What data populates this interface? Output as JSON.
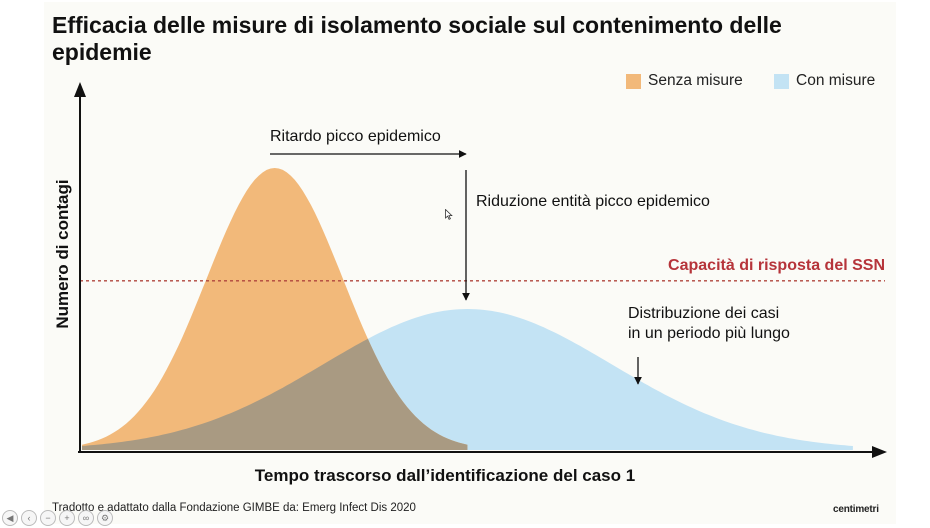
{
  "title": "Efficacia delle misure di isolamento sociale sul contenimento delle epidemie",
  "legend": [
    {
      "label": "Senza misure",
      "color": "#f2b97a"
    },
    {
      "label": "Con misure",
      "color": "#c3e3f4"
    }
  ],
  "annotations": {
    "ritardo": "Ritardo picco epidemico",
    "riduzione": "Riduzione entità picco epidemico",
    "capacita": "Capacità di risposta del SSN",
    "distribuzione_1": "Distribuzione dei casi",
    "distribuzione_2": "in un periodo più lungo"
  },
  "footer": {
    "source": "Tradotto e adattato dalla Fondazione GIMBE da: Emerg Infect Dis 2020",
    "brand": "centimetri"
  },
  "colors": {
    "capacity_line": "#b0453d",
    "capacity_text": "#b6343a",
    "overlap": "#a99a82"
  },
  "chart_data": {
    "type": "area",
    "xlabel": "Tempo trascorso dall’identificazione del caso 1",
    "ylabel": "Numero di contagi",
    "xlim": [
      0,
      100
    ],
    "ylim": [
      0,
      100
    ],
    "series": [
      {
        "name": "Senza misure",
        "peak_x": 24,
        "peak_y": 100,
        "spread": 8.5,
        "end_x": 48
      },
      {
        "name": "Con misure",
        "peak_x": 48,
        "peak_y": 50,
        "spread": 18,
        "end_x": 96
      }
    ],
    "threshold": {
      "label": "Capacità di risposta del SSN",
      "y": 60
    }
  }
}
